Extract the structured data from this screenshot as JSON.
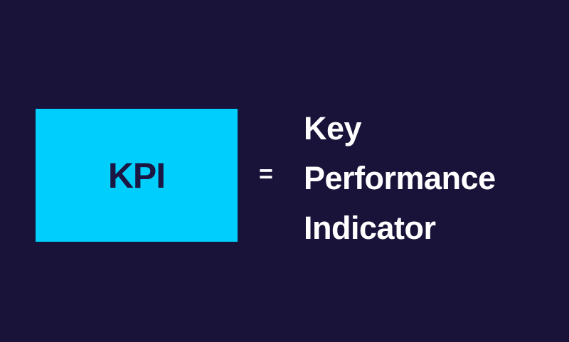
{
  "colors": {
    "background": "#19133a",
    "box": "#00cffd",
    "box_text": "#1b1642",
    "text": "#ffffff"
  },
  "acronym": "KPI",
  "equals": "=",
  "expansion": [
    "Key",
    "Performance",
    "Indicator"
  ]
}
